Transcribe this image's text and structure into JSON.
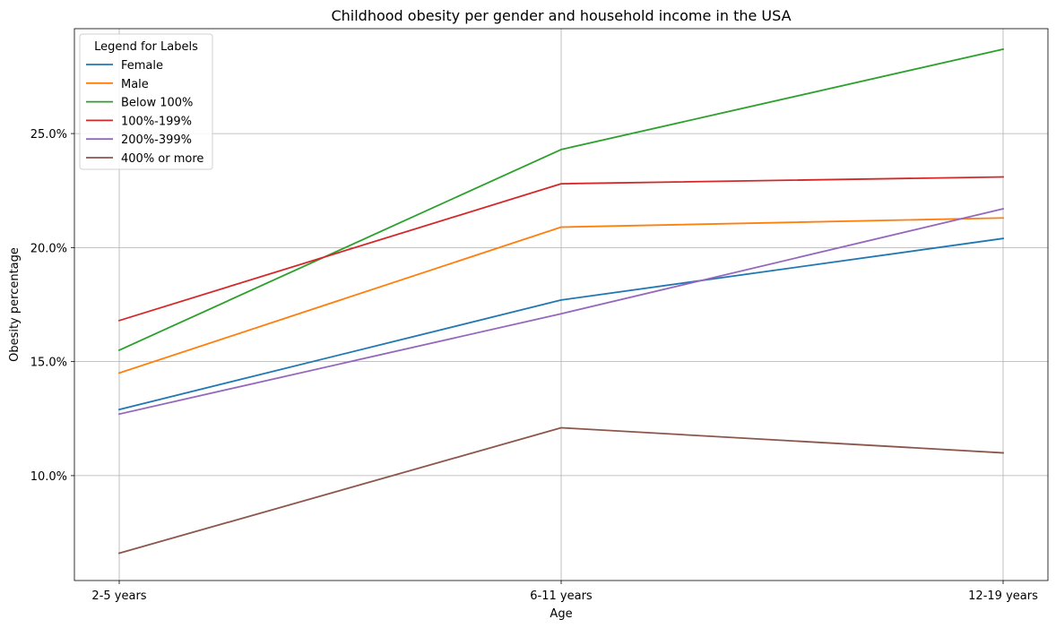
{
  "chart_data": {
    "type": "line",
    "title": "Childhood obesity per gender and household income in the USA",
    "xlabel": "Age",
    "ylabel": "Obesity percentage",
    "categories": [
      "2-5 years",
      "6-11 years",
      "12-19 years"
    ],
    "ylim": [
      5.4,
      29.6
    ],
    "yticks": [
      10,
      15,
      20,
      25
    ],
    "ytick_labels": [
      "10.0%",
      "15.0%",
      "20.0%",
      "25.0%"
    ],
    "grid": true,
    "legend_title": "Legend for Labels",
    "legend_position": "top-left",
    "series": [
      {
        "name": "Female",
        "color": "#1f77b4",
        "values": [
          12.9,
          17.7,
          20.4
        ]
      },
      {
        "name": "Male",
        "color": "#ff7f0e",
        "values": [
          14.5,
          20.9,
          21.3
        ]
      },
      {
        "name": "Below 100%",
        "color": "#2ca02c",
        "values": [
          15.5,
          24.3,
          28.7
        ]
      },
      {
        "name": "100%-199%",
        "color": "#d62728",
        "values": [
          16.8,
          22.8,
          23.1
        ]
      },
      {
        "name": "200%-399%",
        "color": "#9467bd",
        "values": [
          12.7,
          17.1,
          21.7
        ]
      },
      {
        "name": "400% or more",
        "color": "#8c564b",
        "values": [
          6.6,
          12.1,
          11.0
        ]
      }
    ]
  }
}
